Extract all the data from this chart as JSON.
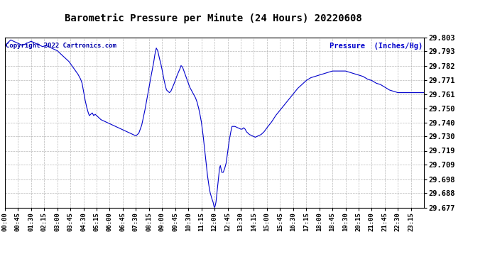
{
  "title": "Barometric Pressure per Minute (24 Hours) 20220608",
  "ylabel": "Pressure  (Inches/Hg)",
  "copyright_text": "Copyright 2022 Cartronics.com",
  "line_color": "#0000cc",
  "background_color": "#ffffff",
  "plot_bg_color": "#ffffff",
  "grid_color": "#999999",
  "title_color": "#000000",
  "ylabel_color": "#0000cc",
  "copyright_color": "#0000aa",
  "ylim_min": 29.677,
  "ylim_max": 29.803,
  "yticks": [
    29.677,
    29.688,
    29.698,
    29.709,
    29.719,
    29.73,
    29.74,
    29.75,
    29.761,
    29.771,
    29.782,
    29.793,
    29.803
  ],
  "xtick_labels": [
    "00:00",
    "00:45",
    "01:30",
    "02:15",
    "03:00",
    "03:45",
    "04:30",
    "05:15",
    "06:00",
    "06:45",
    "07:30",
    "08:15",
    "09:00",
    "09:45",
    "10:30",
    "11:15",
    "12:00",
    "12:45",
    "13:30",
    "14:15",
    "15:00",
    "15:45",
    "16:30",
    "17:15",
    "18:00",
    "18:45",
    "19:30",
    "20:15",
    "21:00",
    "21:45",
    "22:30",
    "23:15"
  ],
  "waypoints": [
    [
      0,
      29.796
    ],
    [
      10,
      29.799
    ],
    [
      20,
      29.801
    ],
    [
      30,
      29.8
    ],
    [
      40,
      29.799
    ],
    [
      50,
      29.798
    ],
    [
      60,
      29.797
    ],
    [
      70,
      29.798
    ],
    [
      80,
      29.799
    ],
    [
      90,
      29.8
    ],
    [
      100,
      29.799
    ],
    [
      110,
      29.798
    ],
    [
      120,
      29.797
    ],
    [
      130,
      29.796
    ],
    [
      140,
      29.797
    ],
    [
      150,
      29.796
    ],
    [
      160,
      29.795
    ],
    [
      170,
      29.794
    ],
    [
      180,
      29.793
    ],
    [
      190,
      29.791
    ],
    [
      200,
      29.789
    ],
    [
      210,
      29.787
    ],
    [
      220,
      29.785
    ],
    [
      230,
      29.782
    ],
    [
      240,
      29.779
    ],
    [
      250,
      29.776
    ],
    [
      260,
      29.772
    ],
    [
      265,
      29.769
    ],
    [
      270,
      29.763
    ],
    [
      275,
      29.757
    ],
    [
      280,
      29.752
    ],
    [
      285,
      29.748
    ],
    [
      290,
      29.745
    ],
    [
      295,
      29.746
    ],
    [
      300,
      29.747
    ],
    [
      305,
      29.745
    ],
    [
      310,
      29.746
    ],
    [
      315,
      29.745
    ],
    [
      320,
      29.744
    ],
    [
      325,
      29.743
    ],
    [
      330,
      29.742
    ],
    [
      340,
      29.741
    ],
    [
      350,
      29.74
    ],
    [
      360,
      29.739
    ],
    [
      370,
      29.738
    ],
    [
      380,
      29.737
    ],
    [
      390,
      29.736
    ],
    [
      400,
      29.735
    ],
    [
      410,
      29.734
    ],
    [
      420,
      29.733
    ],
    [
      430,
      29.732
    ],
    [
      440,
      29.731
    ],
    [
      450,
      29.73
    ],
    [
      460,
      29.732
    ],
    [
      470,
      29.738
    ],
    [
      480,
      29.748
    ],
    [
      490,
      29.76
    ],
    [
      500,
      29.772
    ],
    [
      510,
      29.783
    ],
    [
      515,
      29.79
    ],
    [
      520,
      29.795
    ],
    [
      525,
      29.793
    ],
    [
      530,
      29.788
    ],
    [
      535,
      29.784
    ],
    [
      540,
      29.779
    ],
    [
      545,
      29.773
    ],
    [
      550,
      29.768
    ],
    [
      555,
      29.764
    ],
    [
      560,
      29.763
    ],
    [
      565,
      29.762
    ],
    [
      570,
      29.763
    ],
    [
      580,
      29.768
    ],
    [
      590,
      29.774
    ],
    [
      600,
      29.779
    ],
    [
      605,
      29.782
    ],
    [
      610,
      29.781
    ],
    [
      615,
      29.778
    ],
    [
      620,
      29.775
    ],
    [
      625,
      29.772
    ],
    [
      630,
      29.769
    ],
    [
      635,
      29.766
    ],
    [
      640,
      29.764
    ],
    [
      645,
      29.762
    ],
    [
      650,
      29.76
    ],
    [
      655,
      29.758
    ],
    [
      660,
      29.755
    ],
    [
      665,
      29.751
    ],
    [
      670,
      29.746
    ],
    [
      675,
      29.74
    ],
    [
      680,
      29.732
    ],
    [
      685,
      29.722
    ],
    [
      690,
      29.712
    ],
    [
      695,
      29.702
    ],
    [
      700,
      29.694
    ],
    [
      705,
      29.688
    ],
    [
      710,
      29.684
    ],
    [
      715,
      29.681
    ],
    [
      718,
      29.678
    ],
    [
      720,
      29.677
    ],
    [
      722,
      29.678
    ],
    [
      725,
      29.681
    ],
    [
      730,
      29.691
    ],
    [
      735,
      29.701
    ],
    [
      737,
      29.706
    ],
    [
      740,
      29.708
    ],
    [
      742,
      29.706
    ],
    [
      745,
      29.703
    ],
    [
      750,
      29.703
    ],
    [
      755,
      29.706
    ],
    [
      760,
      29.71
    ],
    [
      765,
      29.718
    ],
    [
      770,
      29.726
    ],
    [
      775,
      29.732
    ],
    [
      780,
      29.737
    ],
    [
      790,
      29.737
    ],
    [
      800,
      29.736
    ],
    [
      810,
      29.735
    ],
    [
      815,
      29.735
    ],
    [
      820,
      29.736
    ],
    [
      825,
      29.735
    ],
    [
      830,
      29.733
    ],
    [
      840,
      29.731
    ],
    [
      850,
      29.73
    ],
    [
      860,
      29.729
    ],
    [
      870,
      29.73
    ],
    [
      880,
      29.731
    ],
    [
      890,
      29.733
    ],
    [
      900,
      29.736
    ],
    [
      915,
      29.74
    ],
    [
      930,
      29.745
    ],
    [
      945,
      29.749
    ],
    [
      960,
      29.753
    ],
    [
      975,
      29.757
    ],
    [
      990,
      29.761
    ],
    [
      1005,
      29.765
    ],
    [
      1020,
      29.768
    ],
    [
      1035,
      29.771
    ],
    [
      1050,
      29.773
    ],
    [
      1065,
      29.774
    ],
    [
      1080,
      29.775
    ],
    [
      1095,
      29.776
    ],
    [
      1110,
      29.777
    ],
    [
      1125,
      29.778
    ],
    [
      1140,
      29.778
    ],
    [
      1155,
      29.778
    ],
    [
      1170,
      29.778
    ],
    [
      1185,
      29.777
    ],
    [
      1200,
      29.776
    ],
    [
      1215,
      29.775
    ],
    [
      1230,
      29.774
    ],
    [
      1245,
      29.772
    ],
    [
      1260,
      29.771
    ],
    [
      1275,
      29.769
    ],
    [
      1290,
      29.768
    ],
    [
      1305,
      29.766
    ],
    [
      1320,
      29.764
    ],
    [
      1335,
      29.763
    ],
    [
      1350,
      29.762
    ],
    [
      1365,
      29.762
    ],
    [
      1380,
      29.762
    ],
    [
      1395,
      29.762
    ],
    [
      1410,
      29.762
    ],
    [
      1425,
      29.762
    ],
    [
      1439,
      29.762
    ]
  ]
}
